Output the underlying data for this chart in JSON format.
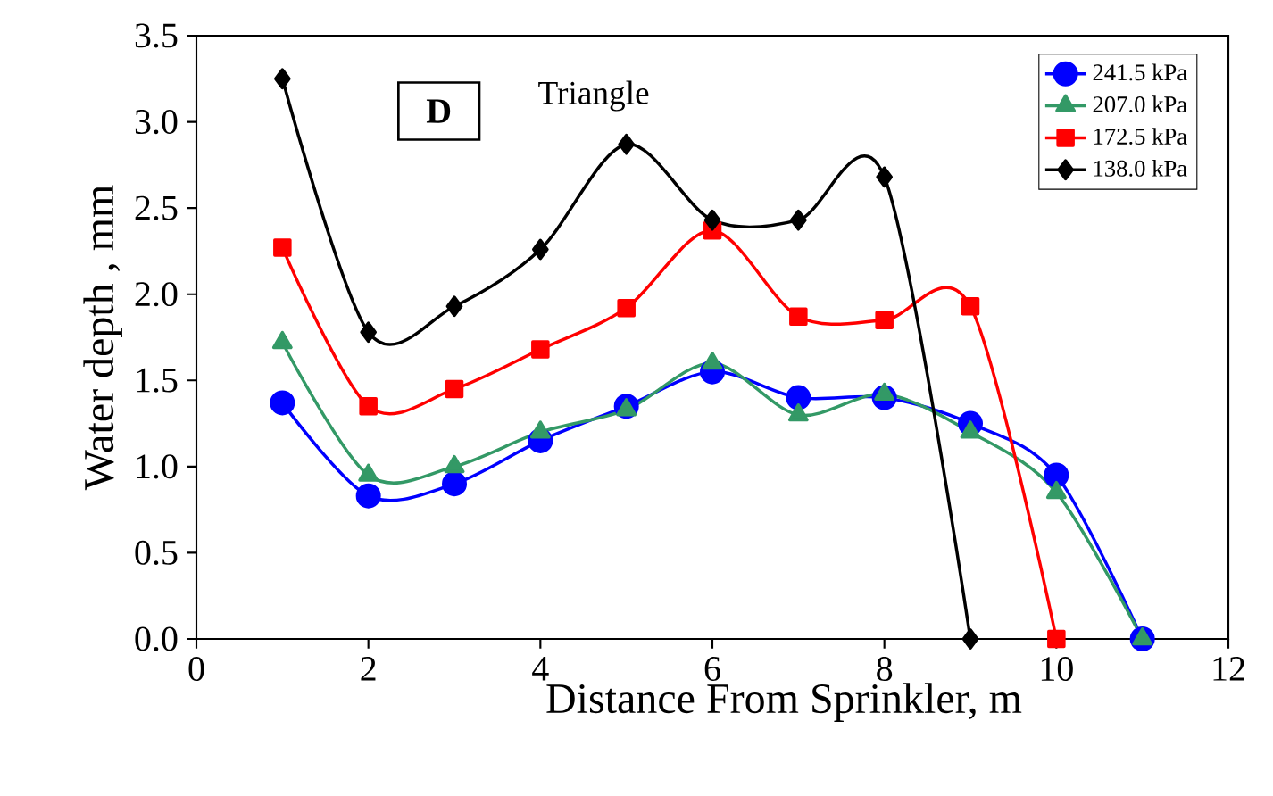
{
  "chart_data": {
    "type": "line",
    "xlabel": "Distance From Sprinkler, m",
    "ylabel": "Water depth , mm",
    "annotations": [
      "D",
      "Triangle"
    ],
    "xlim": [
      0,
      12
    ],
    "xticks": [
      0,
      2,
      4,
      6,
      8,
      10,
      12
    ],
    "ylim": [
      0,
      3.5
    ],
    "yticks": [
      {
        "value": 0,
        "label": "0.0"
      },
      {
        "value": 0.5,
        "label": "0.5"
      },
      {
        "value": 1,
        "label": "1.0"
      },
      {
        "value": 1.5,
        "label": "1.5"
      },
      {
        "value": 2,
        "label": "2.0"
      },
      {
        "value": 2.5,
        "label": "2.5"
      },
      {
        "value": 3,
        "label": "3.0"
      },
      {
        "value": 3.5,
        "label": "3.5"
      }
    ],
    "grid": false,
    "legend": "top right",
    "line_style": "solid",
    "series": [
      {
        "name": "241.5 kPa",
        "color": "#0000ff",
        "marker": "circle",
        "x": [
          1,
          2,
          3,
          4,
          5,
          6,
          7,
          8,
          9,
          10,
          11
        ],
        "values": [
          1.37,
          0.83,
          0.9,
          1.15,
          1.35,
          1.55,
          1.4,
          1.4,
          1.25,
          0.95,
          0
        ]
      },
      {
        "name": "207.0 kPa",
        "color": "#339966",
        "marker": "triangle",
        "x": [
          1,
          2,
          3,
          4,
          5,
          6,
          7,
          8,
          9,
          10,
          11
        ],
        "values": [
          1.72,
          0.95,
          1.0,
          1.2,
          1.33,
          1.6,
          1.3,
          1.42,
          1.2,
          0.85,
          0
        ]
      },
      {
        "name": "172.5 kPa",
        "color": "#ff0000",
        "marker": "square",
        "x": [
          1,
          2,
          3,
          4,
          5,
          6,
          7,
          8,
          9,
          10
        ],
        "values": [
          2.27,
          1.35,
          1.45,
          1.68,
          1.92,
          2.37,
          1.87,
          1.85,
          1.93,
          0
        ]
      },
      {
        "name": "138.0 kPa",
        "color": "#000000",
        "marker": "diamond",
        "x": [
          1,
          2,
          3,
          4,
          5,
          6,
          7,
          8,
          9
        ],
        "values": [
          3.25,
          1.78,
          1.93,
          2.26,
          2.87,
          2.43,
          2.43,
          2.68,
          0
        ]
      }
    ]
  }
}
